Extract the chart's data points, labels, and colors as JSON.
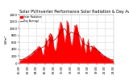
{
  "title": "Solar PV/Inverter Performance Solar Radiation & Day Average per Minute",
  "title_fontsize": 3.5,
  "bg_color": "#ffffff",
  "plot_bg_color": "#ffffff",
  "grid_color": "#cccccc",
  "fill_color": "#ff0000",
  "line_color": "#dd0000",
  "avg_color": "#880000",
  "ylabel": "W/m²",
  "ylabel_fontsize": 3.0,
  "tick_fontsize": 2.8,
  "xlabel_fontsize": 2.5,
  "ylim": [
    0,
    1400
  ],
  "yticks": [
    0,
    200,
    400,
    600,
    800,
    1000,
    1200,
    1400
  ],
  "n_points": 400,
  "legend_label1": "Solar Radiation",
  "legend_label2": "Day Average"
}
